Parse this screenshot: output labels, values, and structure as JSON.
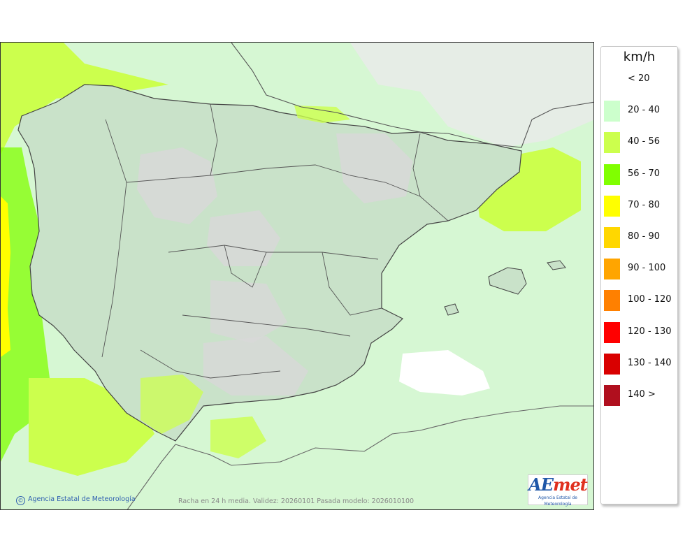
{
  "map": {
    "region": "Iberian Peninsula and Balearic Islands",
    "variable": "Wind gust (24 h mean)",
    "credit": "Agencia Estatal de Meteorología",
    "caption": "Racha en 24 h media. Validez: 20260101 Pasada modelo: 2026010100",
    "logo_text": "AEmet",
    "logo_sub": "Agencia Estatal de Meteorología",
    "colors": {
      "sea_background": "#d6f7d3",
      "land_relief": "#c8dcc8",
      "calm_areas": "#e9e9e9",
      "border_lines": "#444444"
    }
  },
  "legend": {
    "title": "km/h",
    "items": [
      {
        "label": "< 20",
        "color": "#ffffff"
      },
      {
        "label": "20 - 40",
        "color": "#ccffcc"
      },
      {
        "label": "40 - 56",
        "color": "#ccff4d"
      },
      {
        "label": "56 - 70",
        "color": "#80ff00"
      },
      {
        "label": "70 - 80",
        "color": "#ffff00"
      },
      {
        "label": "80 - 90",
        "color": "#ffd700"
      },
      {
        "label": "90 - 100",
        "color": "#ffa500"
      },
      {
        "label": "100 - 120",
        "color": "#ff8000"
      },
      {
        "label": "120 - 130",
        "color": "#ff0000"
      },
      {
        "label": "130 - 140",
        "color": "#d90000"
      },
      {
        "label": "140 >",
        "color": "#b00f1e"
      }
    ]
  }
}
